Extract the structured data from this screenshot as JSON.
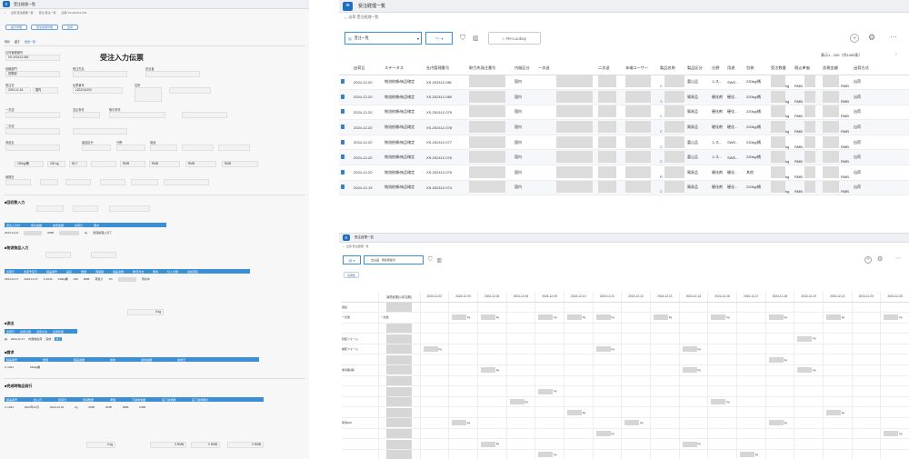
{
  "left": {
    "app_title": "受注経理一覧",
    "breadcrumb": [
      "出荷 受注経理一覧",
      "受注 受注一覧",
      "記録 XS-202412-063"
    ],
    "toolbar": [
      "指示印刷",
      "受注情報印刷",
      "出荷"
    ],
    "tabs": [
      "現状",
      "完了",
      "受送一覧"
    ],
    "form_title": "受注入力伝票",
    "labels": {
      "mgmt_no": "社内管理番号",
      "mgmt_no_val": "XS-202412-063",
      "ordering_dept": "依頼部門",
      "customer": "受注先名",
      "handler": "担当者",
      "dept_val": "営業部",
      "sales_date": "受注日",
      "inquiry": "伝票番号",
      "addr": "住所",
      "date_val": "2024-12-16",
      "domestic": "国内",
      "order_no": "1202241202",
      "first_dest": "一次送",
      "payment": "支払条件",
      "trade_term": "取引条件",
      "second_dest": "二次送",
      "product": "商品名",
      "category": "製品区分",
      "spec": "分野",
      "usage": "用途",
      "weight": "230kg/桶",
      "kg230": "230 kg",
      "pct": "80.7",
      "unit_rmb": "RMB",
      "amount": "金額",
      "deadline": "納期日",
      "mark": "記号",
      "type1": "エリア",
      "type2": "分野区分",
      "dsec1": "■回収数入力",
      "dsec2": "■物流物品入力",
      "dsec3": "■流出",
      "dsec4": "■請求",
      "dsec5": "■完成時物品発行",
      "pay_header": [
        "受注入日付",
        "受注金額",
        "請求金額",
        "出荷日",
        "備考"
      ],
      "pay_row": [
        "2024-12-16",
        "RMB",
        "kg",
        "遅延処理入済了"
      ],
      "ship_header": [
        "出荷日",
        "出荷予定日",
        "製品番号",
        "品名",
        "数量",
        "荷造箱",
        "製品金額",
        "物流方法",
        "備考",
        "仕入分類",
        "追加項目"
      ],
      "ship_row": [
        "2024-12-17",
        "2024-12-17",
        "C-1044",
        "230kg桶",
        "230",
        "RMB",
        "荷造り",
        "1/5",
        "手続中"
      ],
      "flow_header": [
        "出荷日",
        "出荷分類",
        "出荷方法",
        "出荷状態"
      ],
      "flow_row": [
        "2024-12-17",
        "内容物出荷",
        "完成",
        "完了"
      ],
      "bill_header": [
        "製品番号",
        "数量",
        "製品金額",
        "請求",
        "請求金額",
        "請求日"
      ],
      "bill_row": [
        "C-1044",
        "230kg桶"
      ],
      "fin_header": [
        "製品番号",
        "出入日",
        "出荷日",
        "出荷数量",
        "単価",
        "下請求金額",
        "完了請求額",
        "完了請求時計"
      ],
      "fin_row": [
        "C-1044",
        "2024年12月",
        "2024-12-19",
        "kg",
        "RMB",
        "RMB",
        "RMB",
        "RMB"
      ],
      "value_kg": "0 kg",
      "value_rmb": "0 RMB"
    }
  },
  "top_right": {
    "app_title": "受注経理一覧",
    "breadcrumb": "出荷 受注経理一覧",
    "view_select": "受注一覧",
    "relookup": "Re-Lookup",
    "pager": "表示1 - 100（共1494条）",
    "columns": [
      "出荷日",
      "ステータス",
      "社内管理番号",
      "取引先発注番号",
      "内販区分",
      "一次送",
      "二次送",
      "末端ユーザー",
      "製品名称",
      "製品区分",
      "分野",
      "用途",
      "包装",
      "受注数量",
      "税込単価",
      "含税金額",
      "出荷方式"
    ],
    "rows": [
      {
        "date": "2024-12-20",
        "status": "物流依頼/納品確定",
        "no": "XS-202412-081",
        "region": "国内",
        "prod": "C",
        "cat": "富山品",
        "field": "シス...",
        "use": "SWE...",
        "pack": "230kg/桶",
        "unit": "kg",
        "cur": "RMB",
        "cur2": "RMB",
        "ship": "出荷"
      },
      {
        "date": "2024-12-20",
        "status": "物流依頼/納品確定",
        "no": "XS-202412-080",
        "region": "国内",
        "prod": "C",
        "cat": "貿易品",
        "field": "硬化剤",
        "use": "硬化...",
        "pack": "220kg/桶",
        "unit": "kg",
        "cur": "RMB",
        "cur2": "RMB",
        "ship": "出荷"
      },
      {
        "date": "2024-12-20",
        "status": "物流依頼/納品確定",
        "no": "XS-202412-079",
        "region": "国内",
        "prod": "C",
        "cat": "貿易品",
        "field": "硬化剤",
        "use": "硬化...",
        "pack": "220kg/桶",
        "unit": "kg",
        "cur": "RMB",
        "cur2": "RMB",
        "ship": "出荷"
      },
      {
        "date": "2024-12-20",
        "status": "物流依頼/納品確定",
        "no": "XS-202412-078",
        "region": "国内",
        "prod": "C",
        "cat": "貿易品",
        "field": "硬化剤",
        "use": "硬化...",
        "pack": "220kg/桶",
        "unit": "kg",
        "cur": "RMB",
        "cur2": "RMB",
        "ship": "出荷"
      },
      {
        "date": "2024-12-20",
        "status": "物流依頼/納品確定",
        "no": "XS-202412-077",
        "region": "国内",
        "prod": "C",
        "cat": "富山品",
        "field": "シス...",
        "use": "SWE...",
        "pack": "230kg/桶",
        "unit": "kg",
        "cur": "RMB",
        "cur2": "RMB",
        "ship": "出荷"
      },
      {
        "date": "2024-12-20",
        "status": "物流依頼/納品確定",
        "no": "XS-202412-076",
        "region": "国内",
        "prod": "C",
        "cat": "富山品",
        "field": "シス...",
        "use": "SWE...",
        "pack": "230kg/桶",
        "unit": "kg",
        "cur": "RMB",
        "cur2": "RMB",
        "ship": "出荷"
      },
      {
        "date": "2024-12-20",
        "status": "物流依頼/納品確定",
        "no": "XS-202412-075",
        "region": "国内",
        "prod": "R",
        "cat": "貿易品",
        "field": "硬化剤",
        "use": "硬化...",
        "pack": "其他",
        "unit": "kg",
        "cur": "RMB",
        "cur2": "RMB",
        "ship": "出荷"
      },
      {
        "date": "2024-12-19",
        "status": "物流依頼/納品確定",
        "no": "XS-202412-074",
        "region": "国内",
        "prod": "C",
        "cat": "貿易品",
        "field": "硬化剤",
        "use": "硬化...",
        "pack": "220kg/桶",
        "unit": "kg",
        "cur": "RMB",
        "cur2": "RMB",
        "ship": "出荷"
      }
    ]
  },
  "bottom_right": {
    "app_title": "受注経理一覧",
    "breadcrumb": "出荷 受注経理一覧",
    "view_select": "出山品　用途別集計",
    "filter_btn": "出荷集",
    "first_col": "最終経理(以前当期)",
    "dates": [
      "2024-12-02",
      "2024-12-03",
      "2024-12-04",
      "2024-12-05",
      "2024-12-09",
      "2024-12-10",
      "2024-12-11",
      "2024-12-12",
      "2024-12-13",
      "2024-12-14",
      "2024-12-16",
      "2024-12-17",
      "2024-12-18",
      "2024-12-19",
      "2024-12-21",
      "2024-12-23",
      "2024-12-25"
    ],
    "row_labels": [
      "用途",
      "一次送",
      "",
      "封装フォーム",
      "袋装フォーム",
      "",
      "非基盤(保)",
      "",
      "",
      "",
      "",
      "荷池HDI",
      "",
      "",
      "",
      ""
    ],
    "top_label": "一次送",
    "unit": "kg"
  }
}
